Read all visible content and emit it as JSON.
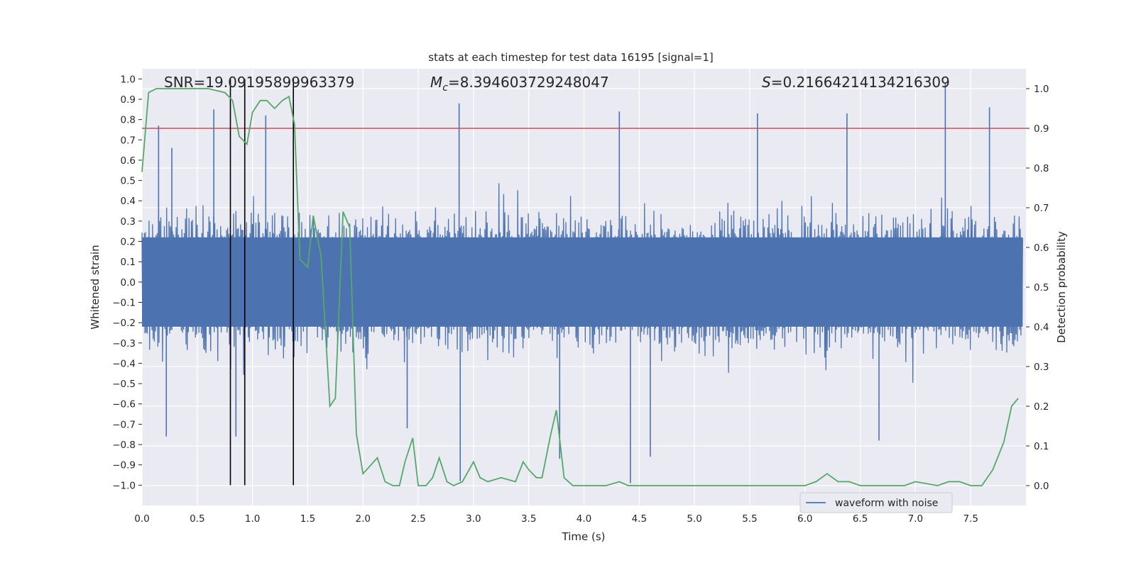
{
  "chart_data": {
    "type": "line",
    "title": "stats at each timestep for test data 16195 [signal=1]",
    "xlabel": "Time (s)",
    "ylabel_left": "Whitened strain",
    "ylabel_right": "Detection probability",
    "xlim": [
      0.0,
      8.0
    ],
    "ylim_left": [
      -1.1,
      1.05
    ],
    "ylim_right": [
      -0.05,
      1.05
    ],
    "xticks": [
      "0.0",
      "0.5",
      "1.0",
      "1.5",
      "2.0",
      "2.5",
      "3.0",
      "3.5",
      "4.0",
      "4.5",
      "5.0",
      "5.5",
      "6.0",
      "6.5",
      "7.0",
      "7.5"
    ],
    "yticks_left": [
      "1.0",
      "0.9",
      "0.8",
      "0.7",
      "0.6",
      "0.5",
      "0.4",
      "0.3",
      "0.2",
      "0.1",
      "0.0",
      "−0.1",
      "−0.2",
      "−0.3",
      "−0.4",
      "−0.5",
      "−0.6",
      "−0.7",
      "−0.8",
      "−0.9",
      "−1.0"
    ],
    "yticks_right": [
      "1.0",
      "0.9",
      "0.8",
      "0.7",
      "0.6",
      "0.5",
      "0.4",
      "0.3",
      "0.2",
      "0.1",
      "0.0"
    ],
    "grid": true,
    "legend_position": "lower-right",
    "annotations": {
      "snr": "SNR=19.09195899963379",
      "mc_sym": "M",
      "mc_sub": "c",
      "mc_val": "=8.394603729248047",
      "s_sym": "S",
      "s_val": "=0.21664214134216309"
    },
    "threshold": {
      "value": 0.9,
      "axis": "right",
      "color": "#c44e52"
    },
    "vlines": {
      "x": [
        0.8,
        0.93,
        1.37
      ],
      "ymin": -1.0,
      "ymax": 1.0,
      "color": "#000000"
    },
    "waveform": {
      "name": "waveform with noise",
      "color": "#4c72b0",
      "x_range": [
        0.0,
        7.97
      ],
      "envelope_upper": 0.38,
      "envelope_lower": -0.38,
      "peaks": [
        {
          "x": 0.15,
          "y": 0.77
        },
        {
          "x": 0.27,
          "y": 0.66
        },
        {
          "x": 0.65,
          "y": 0.85
        },
        {
          "x": 1.12,
          "y": 0.82
        },
        {
          "x": 2.87,
          "y": 0.88
        },
        {
          "x": 4.32,
          "y": 0.84
        },
        {
          "x": 5.57,
          "y": 0.83
        },
        {
          "x": 6.38,
          "y": 0.83
        },
        {
          "x": 7.27,
          "y": 0.98
        },
        {
          "x": 7.67,
          "y": 0.86
        },
        {
          "x": 0.22,
          "y": -0.76
        },
        {
          "x": 0.85,
          "y": -0.76
        },
        {
          "x": 2.88,
          "y": -0.98
        },
        {
          "x": 3.78,
          "y": -0.87
        },
        {
          "x": 4.42,
          "y": -0.99
        },
        {
          "x": 4.6,
          "y": -0.86
        },
        {
          "x": 6.67,
          "y": -0.78
        },
        {
          "x": 2.4,
          "y": -0.72
        }
      ]
    },
    "probability": {
      "color": "#55a868",
      "x": [
        0.0,
        0.06,
        0.13,
        0.25,
        0.5,
        0.6,
        0.75,
        0.82,
        0.88,
        0.95,
        1.0,
        1.07,
        1.13,
        1.2,
        1.27,
        1.33,
        1.38,
        1.43,
        1.5,
        1.55,
        1.62,
        1.7,
        1.75,
        1.82,
        1.88,
        1.94,
        2.0,
        2.13,
        2.2,
        2.27,
        2.33,
        2.38,
        2.45,
        2.5,
        2.57,
        2.63,
        2.69,
        2.76,
        2.82,
        2.9,
        3.0,
        3.06,
        3.13,
        3.25,
        3.38,
        3.45,
        3.5,
        3.57,
        3.62,
        3.7,
        3.75,
        3.82,
        3.9,
        4.0,
        4.2,
        4.32,
        4.4,
        4.6,
        4.8,
        5.0,
        5.2,
        5.5,
        5.8,
        6.0,
        6.1,
        6.2,
        6.3,
        6.4,
        6.5,
        6.7,
        6.9,
        7.0,
        7.2,
        7.3,
        7.4,
        7.5,
        7.6,
        7.7,
        7.8,
        7.87,
        7.93
      ],
      "y": [
        0.79,
        0.99,
        1.0,
        1.0,
        1.0,
        1.0,
        0.99,
        0.97,
        0.88,
        0.86,
        0.94,
        0.97,
        0.97,
        0.95,
        0.97,
        0.98,
        0.91,
        0.57,
        0.55,
        0.68,
        0.58,
        0.2,
        0.22,
        0.69,
        0.65,
        0.13,
        0.03,
        0.07,
        0.01,
        0.0,
        0.0,
        0.06,
        0.12,
        0.0,
        0.0,
        0.02,
        0.07,
        0.01,
        0.0,
        0.01,
        0.06,
        0.02,
        0.01,
        0.02,
        0.01,
        0.06,
        0.04,
        0.02,
        0.02,
        0.13,
        0.19,
        0.02,
        0.0,
        0.0,
        0.0,
        0.01,
        0.0,
        0.0,
        0.0,
        0.0,
        0.0,
        0.0,
        0.0,
        0.0,
        0.01,
        0.03,
        0.01,
        0.01,
        0.0,
        0.0,
        0.0,
        0.01,
        0.0,
        0.01,
        0.01,
        0.0,
        0.0,
        0.04,
        0.11,
        0.2,
        0.22
      ]
    }
  }
}
